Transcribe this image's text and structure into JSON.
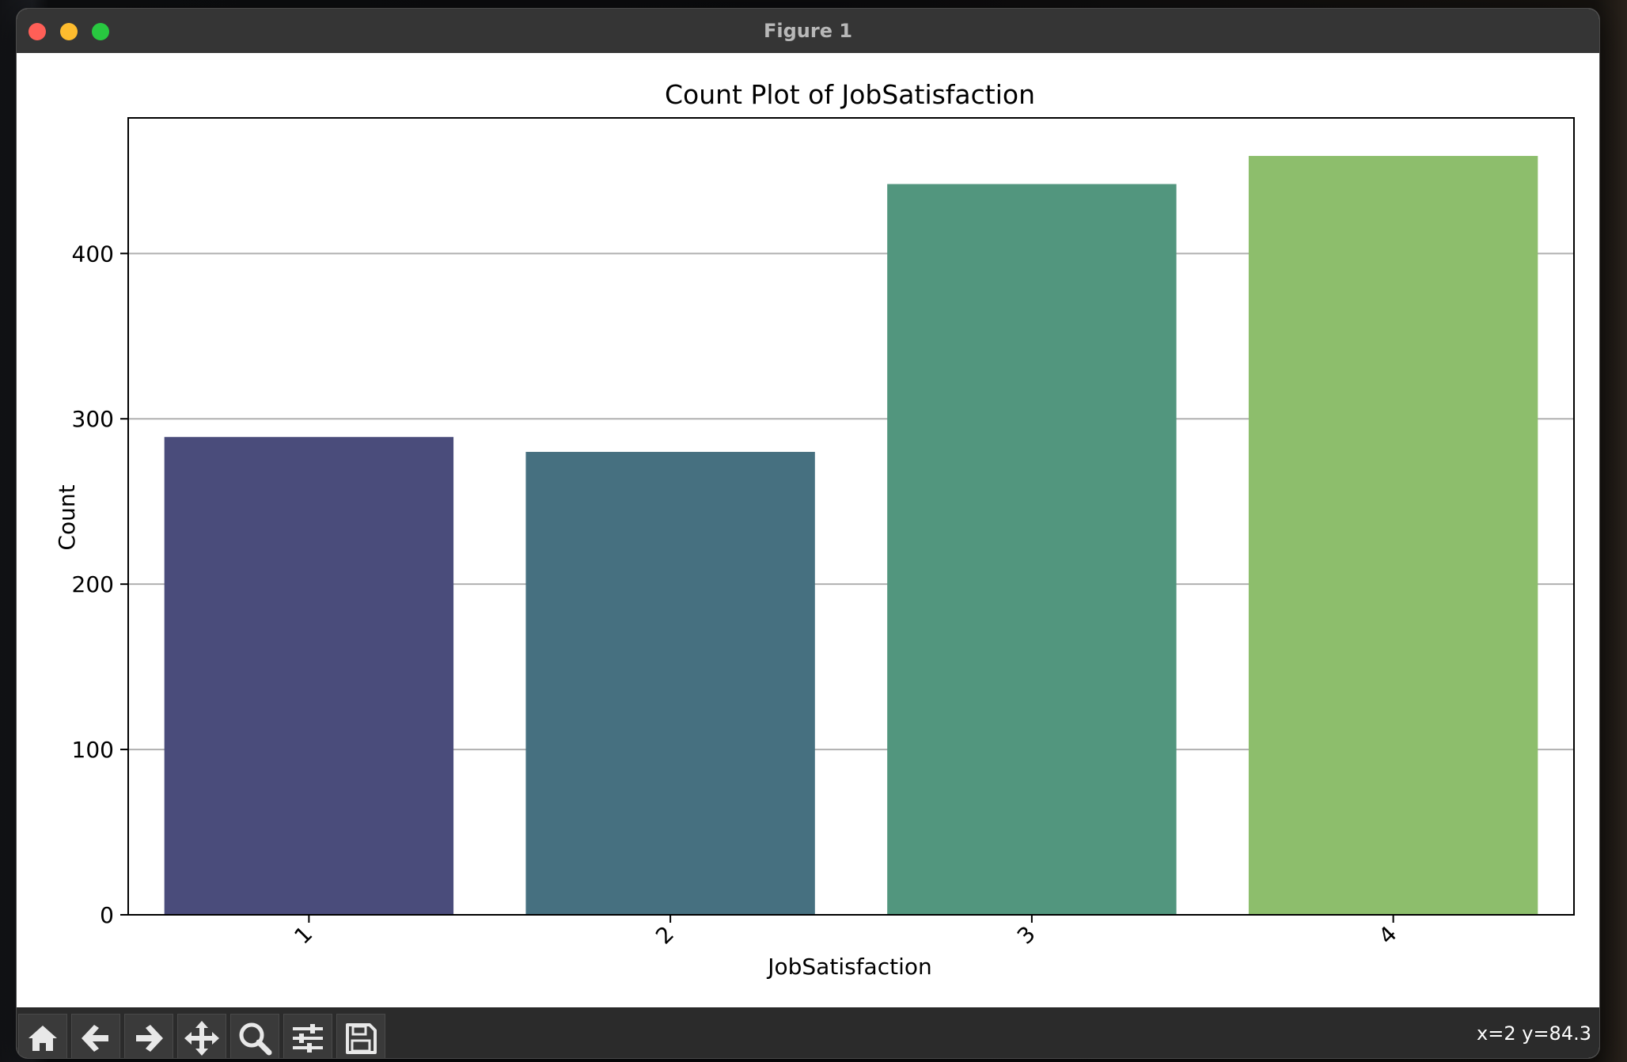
{
  "window": {
    "title": "Figure 1"
  },
  "toolbar": {
    "buttons": [
      {
        "name": "home-button",
        "icon": "home-icon"
      },
      {
        "name": "back-button",
        "icon": "arrow-left-icon"
      },
      {
        "name": "forward-button",
        "icon": "arrow-right-icon"
      },
      {
        "name": "pan-button",
        "icon": "move-icon"
      },
      {
        "name": "zoom-button",
        "icon": "search-icon"
      },
      {
        "name": "configure-subplots-button",
        "icon": "sliders-icon"
      },
      {
        "name": "save-button",
        "icon": "floppy-disk-icon"
      }
    ],
    "coords": "x=2 y=84.3"
  },
  "chart_data": {
    "type": "bar",
    "title": "Count Plot of JobSatisfaction",
    "xlabel": "JobSatisfaction",
    "ylabel": "Count",
    "categories": [
      "1",
      "2",
      "3",
      "4"
    ],
    "values": [
      289,
      280,
      442,
      459
    ],
    "colors": [
      "#4a4c7b",
      "#467080",
      "#52967e",
      "#8dbe6c"
    ],
    "ylim": [
      0,
      482
    ],
    "yticks": [
      0,
      100,
      200,
      300,
      400
    ],
    "grid": "y",
    "xtick_rotation": 45
  }
}
